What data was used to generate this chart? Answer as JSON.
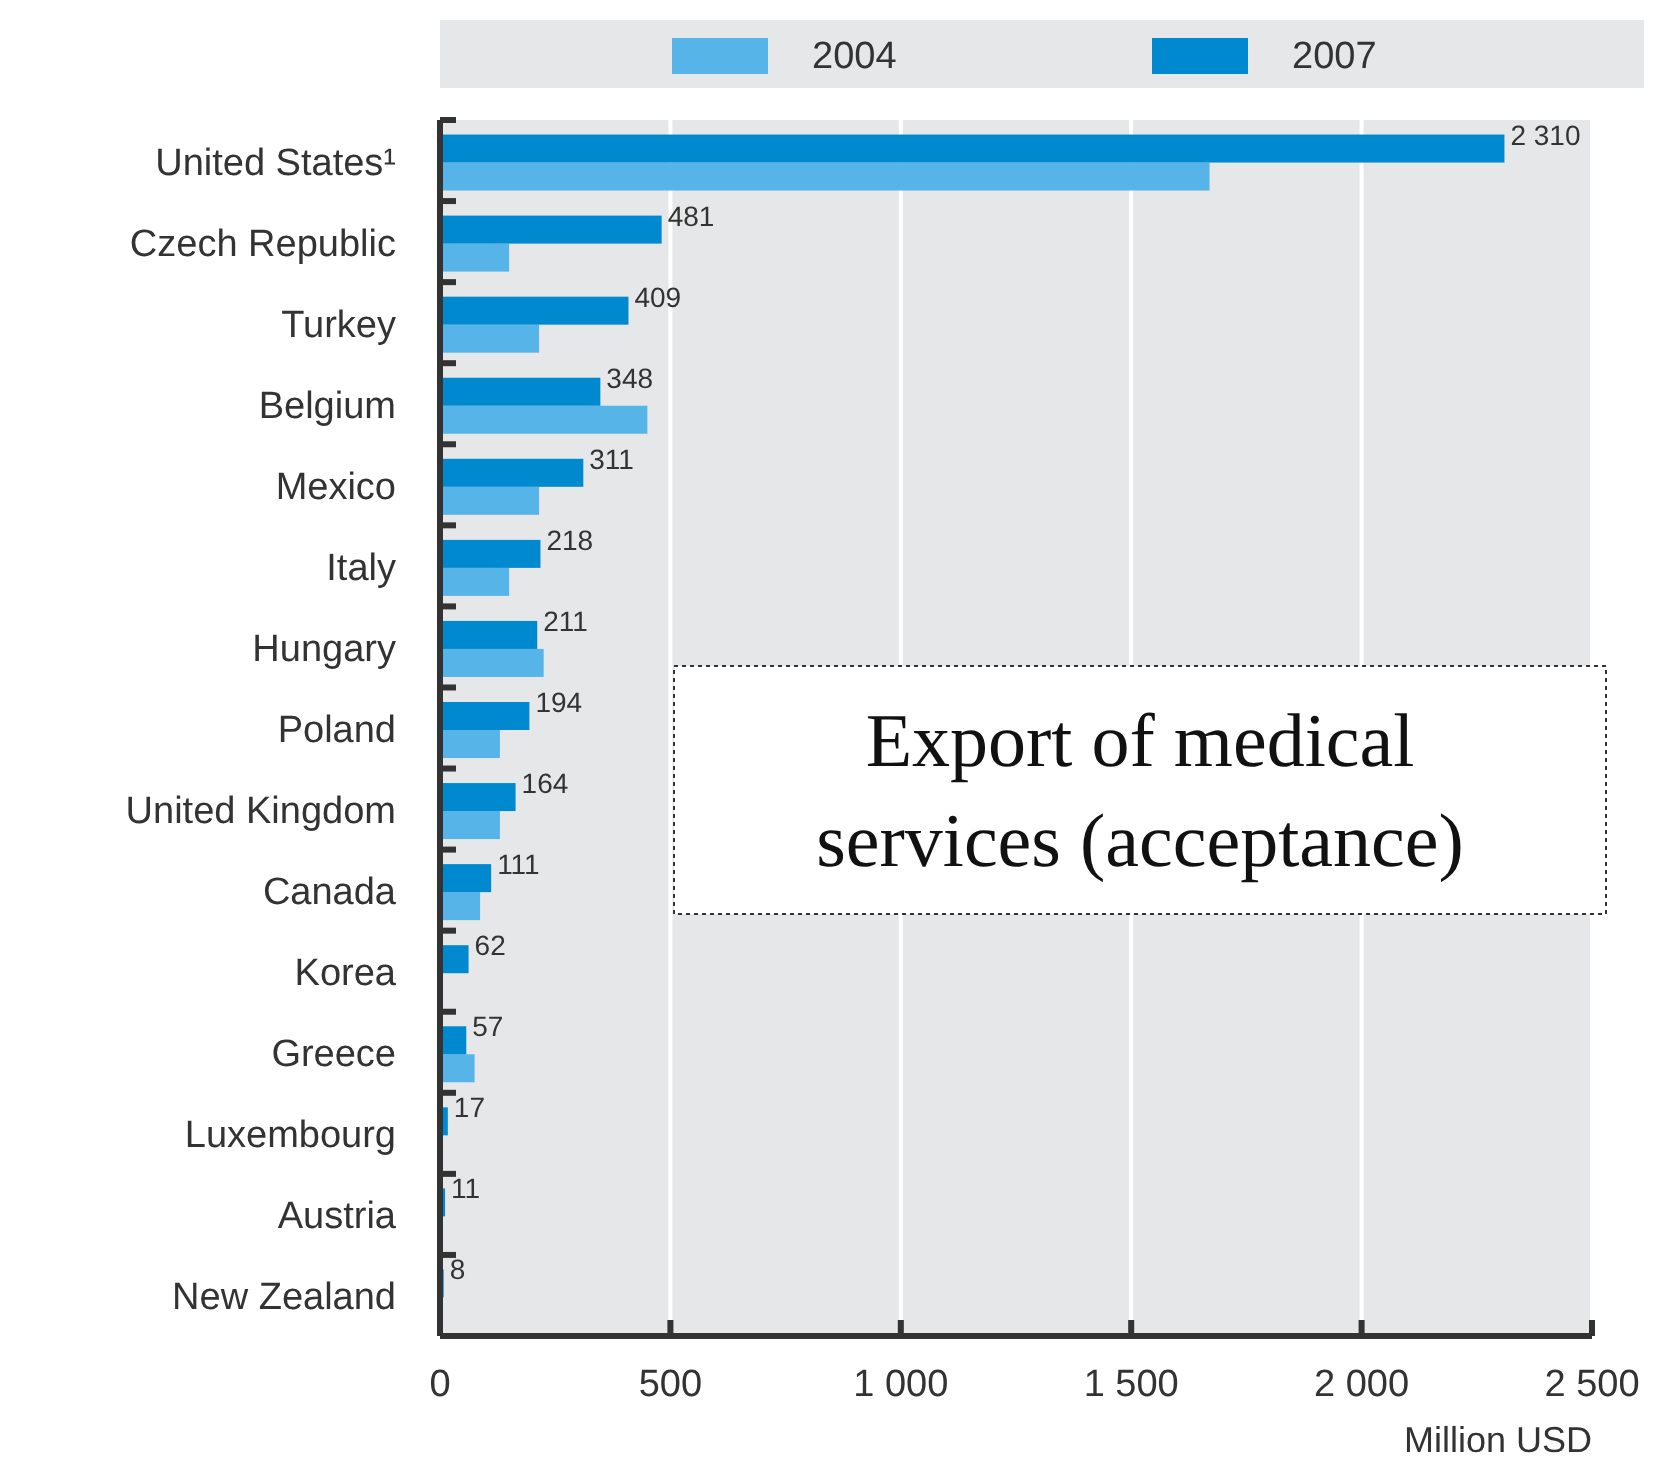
{
  "chart_data": {
    "type": "bar",
    "orientation": "horizontal",
    "xlabel": "Million USD",
    "categories": [
      "United States¹",
      "Czech Republic",
      "Turkey",
      "Belgium",
      "Mexico",
      "Italy",
      "Hungary",
      "Poland",
      "United Kingdom",
      "Canada",
      "Korea",
      "Greece",
      "Luxembourg",
      "Austria",
      "New Zealand"
    ],
    "series": [
      {
        "name": "2004",
        "color": "#56b4e9",
        "values": [
          1670,
          150,
          215,
          450,
          215,
          150,
          225,
          130,
          130,
          87,
          null,
          75,
          null,
          null,
          null
        ]
      },
      {
        "name": "2007",
        "color": "#0089cf",
        "values": [
          2310,
          481,
          409,
          348,
          311,
          218,
          211,
          194,
          164,
          111,
          62,
          57,
          17,
          11,
          8
        ],
        "value_labels": [
          "2 310",
          "481",
          "409",
          "348",
          "311",
          "218",
          "211",
          "194",
          "164",
          "111",
          "62",
          "57",
          "17",
          "11",
          "8"
        ]
      }
    ],
    "xlim": [
      0,
      2500
    ],
    "xticks": [
      0,
      500,
      {
        "value": 1000,
        "label": "1 000"
      },
      {
        "value": 1500,
        "label": "1 500"
      },
      {
        "value": 2000,
        "label": "2 000"
      },
      {
        "value": 2500,
        "label": "2 500"
      }
    ],
    "grid": "x",
    "legend": "top",
    "annotations": [
      "Export of medical services (acceptance)"
    ]
  }
}
